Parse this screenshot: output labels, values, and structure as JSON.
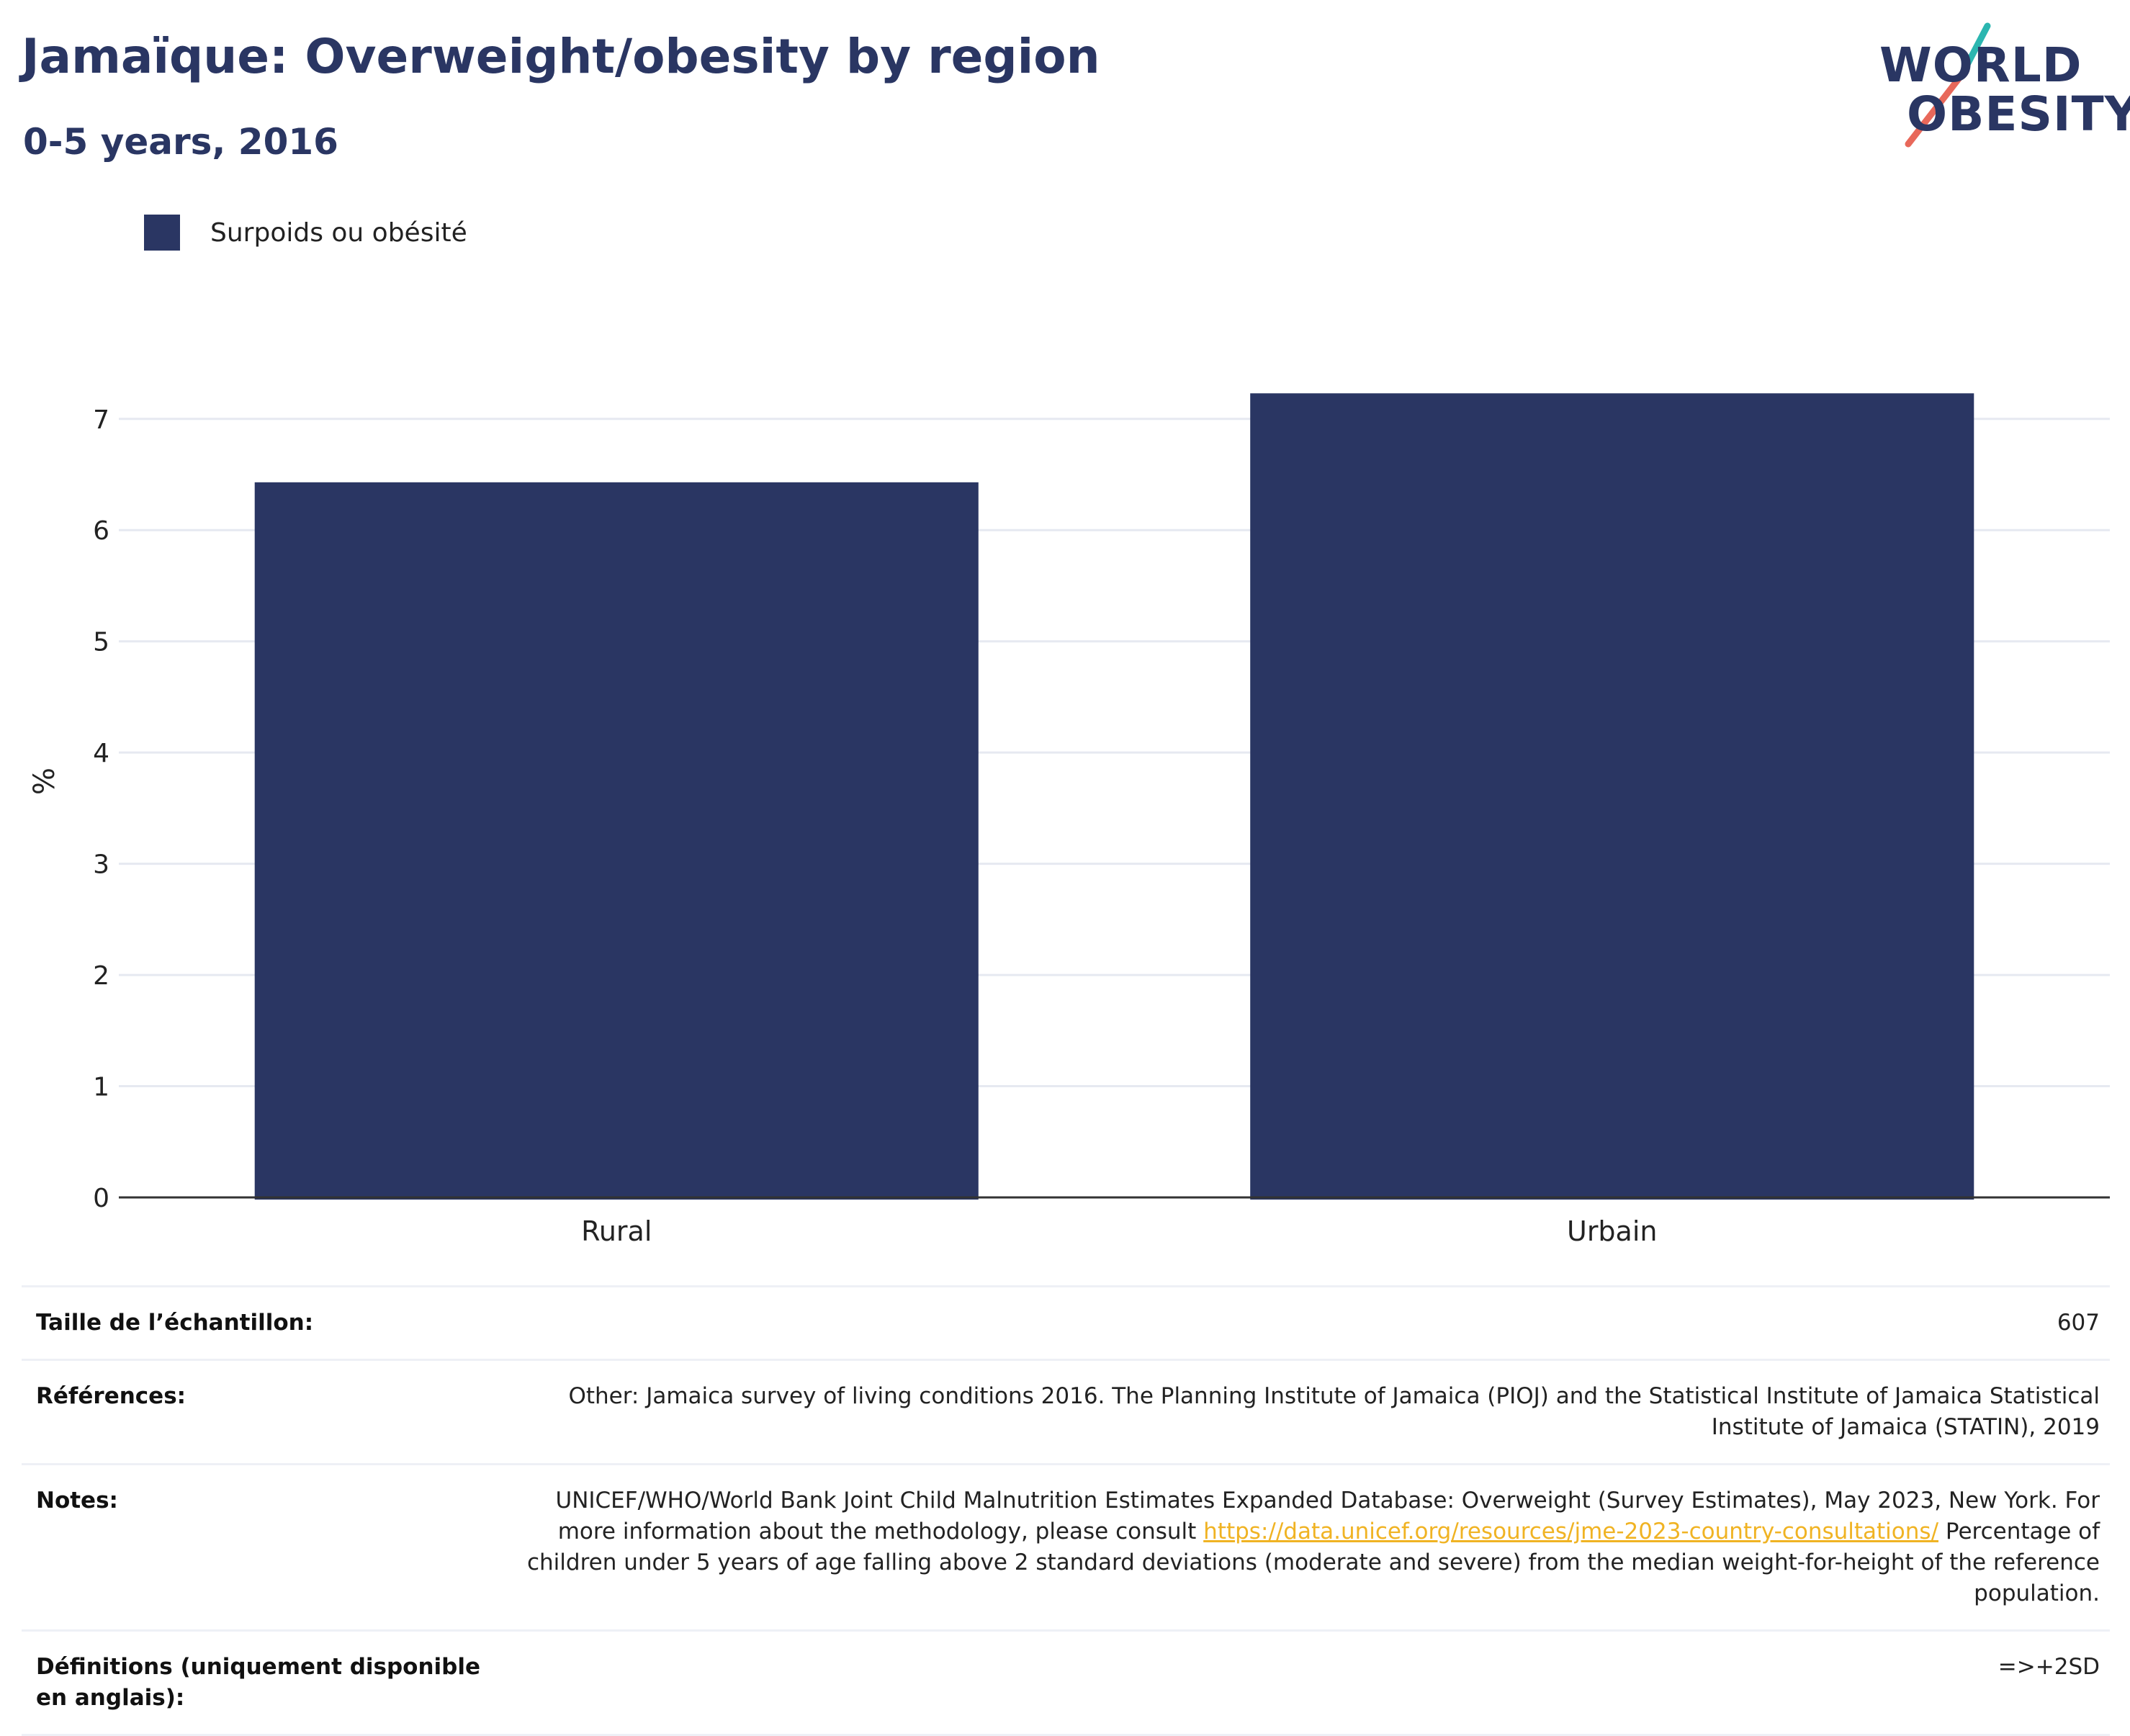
{
  "header": {
    "title": "Jamaïque: Overweight/obesity by region",
    "subtitle": "0-5 years, 2016"
  },
  "logo": {
    "line1": "WORLD",
    "line2": "OBESITY",
    "brand_color": "#2a3663",
    "slash_colors": [
      "#2bb6b0",
      "#e8685a"
    ]
  },
  "legend": {
    "label": "Surpoids ou obésité",
    "color": "#2a3663"
  },
  "chart_data": {
    "type": "bar",
    "categories": [
      "Rural",
      "Urbain"
    ],
    "series": [
      {
        "name": "Surpoids ou obésité",
        "values": [
          6.43,
          7.23
        ],
        "color": "#2a3663"
      }
    ],
    "title": "Jamaïque: Overweight/obesity by region",
    "subtitle": "0-5 years, 2016",
    "xlabel": "",
    "ylabel": "%",
    "ylim": [
      0,
      7.4
    ],
    "yticks": [
      0,
      1,
      2,
      3,
      4,
      5,
      6,
      7
    ],
    "grid": true,
    "legend_position": "top-left"
  },
  "info": {
    "sample": {
      "label": "Taille de l’échantillon:",
      "value": "607"
    },
    "references": {
      "label": "Références:",
      "value": "Other: Jamaica survey of living conditions 2016. The Planning Institute of Jamaica (PIOJ) and the Statistical Institute of Jamaica Statistical Institute of Jamaica (STATIN), 2019"
    },
    "notes": {
      "label": "Notes:",
      "text1": "UNICEF/WHO/World Bank Joint Child Malnutrition Estimates Expanded Database: Overweight (Survey Estimates), May 2023, New York. For more information about the methodology, please consult ",
      "link": "https://data.unicef.org/resources/jme-2023-country-consultations/",
      "text2": " Percentage of children under 5 years of age falling above 2 standard deviations (moderate and severe) from the median weight-for-height of the reference population."
    },
    "definitions": {
      "label": "Définitions (uniquement disponible en anglais):",
      "value": "=>+2SD"
    }
  }
}
